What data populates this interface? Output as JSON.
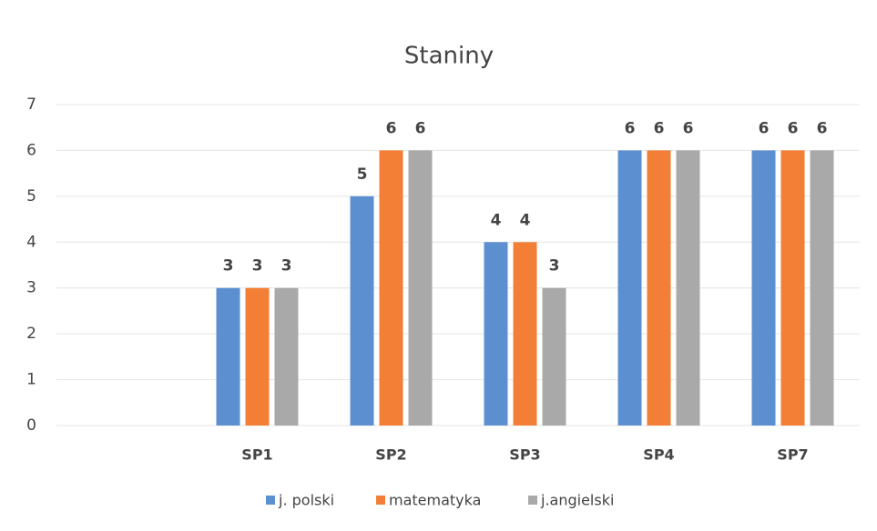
{
  "chart_data": {
    "type": "bar",
    "title": "Staniny",
    "categories": [
      null,
      "SP1",
      "SP2",
      "SP3",
      "SP4",
      "SP7"
    ],
    "series": [
      {
        "name": "j. polski",
        "color": "#5b8fd0",
        "values": [
          null,
          3,
          5,
          4,
          6,
          6
        ]
      },
      {
        "name": "matematyka",
        "color": "#f27f35",
        "values": [
          null,
          3,
          6,
          4,
          6,
          6
        ]
      },
      {
        "name": "j.angielski",
        "color": "#a9a9a9",
        "values": [
          null,
          3,
          6,
          3,
          6,
          6
        ]
      }
    ],
    "ylim": [
      0,
      7
    ],
    "yticks": [
      0,
      1,
      2,
      3,
      4,
      5,
      6,
      7
    ],
    "grid": true,
    "legend": "bottom",
    "data_labels": true
  }
}
